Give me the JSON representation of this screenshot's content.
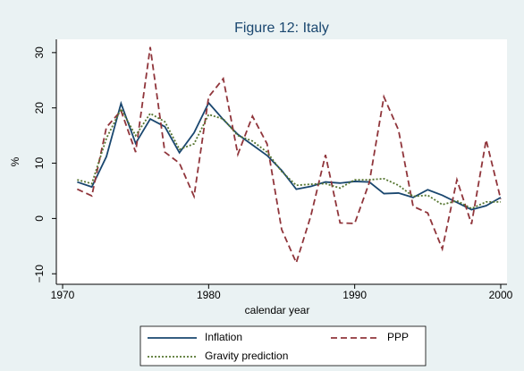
{
  "chart_data": {
    "type": "line",
    "title": "Figure 12: Italy",
    "x_label": "calendar year",
    "y_label": "%",
    "x": [
      1971,
      1972,
      1973,
      1974,
      1975,
      1976,
      1977,
      1978,
      1979,
      1980,
      1981,
      1982,
      1983,
      1984,
      1985,
      1986,
      1987,
      1988,
      1989,
      1990,
      1991,
      1992,
      1993,
      1994,
      1995,
      1996,
      1997,
      1998,
      1999,
      2000
    ],
    "series": [
      {
        "name": "Inflation",
        "color": "#1a476f",
        "style": "solid",
        "values": [
          6.6,
          5.7,
          11.2,
          20.8,
          13.6,
          18,
          16.6,
          11.9,
          15.5,
          20.9,
          17.9,
          15.2,
          13.3,
          11.4,
          8.7,
          5.3,
          5.8,
          6.6,
          6.4,
          6.7,
          6.6,
          4.5,
          4.6,
          3.8,
          5.2,
          4.2,
          2.9,
          1.6,
          2.3,
          3.8
        ]
      },
      {
        "name": "PPP",
        "color": "#90353b",
        "style": "dash",
        "values": [
          5.3,
          4.1,
          16.5,
          19.5,
          12,
          31,
          12,
          10,
          4,
          22,
          25.3,
          11.6,
          18.5,
          13.5,
          -2,
          -8,
          0.5,
          11.5,
          -0.8,
          -0.9,
          6.5,
          22,
          16,
          2.2,
          1,
          -5.5,
          7,
          -1,
          14.2,
          3.5
        ]
      },
      {
        "name": "Gravity prediction",
        "color": "#55752f",
        "style": "dot",
        "values": [
          7,
          6.3,
          14.5,
          19.8,
          15,
          19,
          17.5,
          12.5,
          13.5,
          18.8,
          18,
          15,
          14,
          12,
          8.5,
          6,
          6.2,
          6.3,
          5.5,
          7,
          7,
          7.2,
          6,
          4,
          4.2,
          2.5,
          3.2,
          1.8,
          3,
          3
        ]
      }
    ],
    "xlim": [
      1969.57,
      2000.43
    ],
    "xticks": [
      1970,
      1980,
      1990,
      2000
    ],
    "ylim": [
      -11.9,
      32.4
    ],
    "yticks": [
      {
        "value": -10,
        "label": "−10"
      },
      0,
      10,
      20,
      30
    ],
    "grid": false
  }
}
